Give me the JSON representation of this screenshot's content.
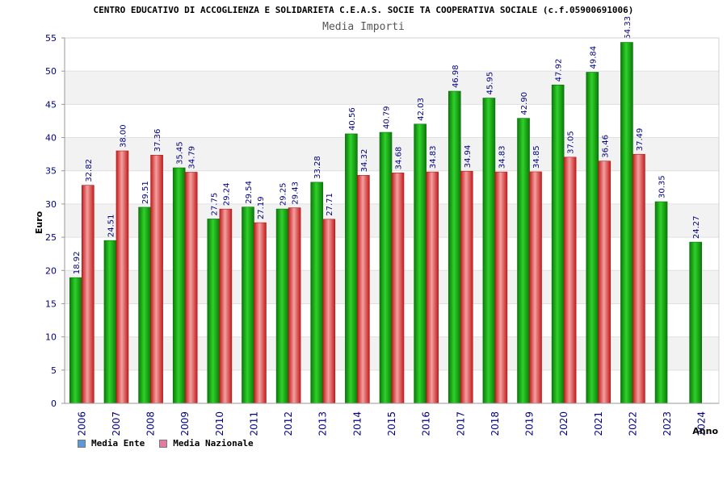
{
  "header": {
    "title": "CENTRO EDUCATIVO DI ACCOGLIENZA E SOLIDARIETA C.E.A.S. SOCIE TA COOPERATIVA SOCIALE (c.f.05900691006)",
    "subtitle": "Media Importi"
  },
  "legend": {
    "series_a": "Media Ente",
    "series_b": "Media Nazionale",
    "color_a_swatch": "#5b9bd5",
    "color_b_swatch": "#e27ba4"
  },
  "colors": {
    "ente": "#22b11f",
    "ente_dark": "#0d6e0b",
    "nazionale": "#f04545",
    "nazionale_dark": "#b51818",
    "axis_text": "#000080",
    "label_text": "#000080",
    "band": "#f2f2f2",
    "grid": "#e0e0e0"
  },
  "chart_data": {
    "type": "bar",
    "title": "Media Importi",
    "xlabel": "Anno",
    "ylabel": "Euro",
    "ylim": [
      0,
      55
    ],
    "yticks": [
      0,
      5,
      10,
      15,
      20,
      25,
      30,
      35,
      40,
      45,
      50,
      55
    ],
    "categories": [
      "2006",
      "2007",
      "2008",
      "2009",
      "2010",
      "2011",
      "2012",
      "2013",
      "2014",
      "2015",
      "2016",
      "2017",
      "2018",
      "2019",
      "2020",
      "2021",
      "2022",
      "2023",
      "2024"
    ],
    "series": [
      {
        "name": "Media Ente",
        "values": [
          18.92,
          24.51,
          29.51,
          35.45,
          27.75,
          29.54,
          29.25,
          33.28,
          40.56,
          40.79,
          42.03,
          46.98,
          45.95,
          42.9,
          47.92,
          49.84,
          54.33,
          30.35,
          24.27
        ],
        "labels": [
          "18.92",
          "24.51",
          "29.51",
          "35.45",
          "27.75",
          "29.54",
          "29.25",
          "33.28",
          "40.56",
          "40.79",
          "42.03",
          "46.98",
          "45.95",
          "42.90",
          "47.92",
          "49.84",
          "54.33",
          "30.35",
          "24.27"
        ]
      },
      {
        "name": "Media Nazionale",
        "values": [
          32.82,
          38.0,
          37.36,
          34.79,
          29.24,
          27.19,
          29.43,
          27.71,
          34.32,
          34.68,
          34.83,
          34.94,
          34.83,
          34.85,
          37.05,
          36.46,
          37.49,
          null,
          null
        ],
        "labels": [
          "32.82",
          "38.00",
          "37.36",
          "34.79",
          "29.24",
          "27.19",
          "29.43",
          "27.71",
          "34.32",
          "34.68",
          "34.83",
          "34.94",
          "34.83",
          "34.85",
          "37.05",
          "36.46",
          "37.49",
          null,
          null
        ]
      }
    ]
  }
}
